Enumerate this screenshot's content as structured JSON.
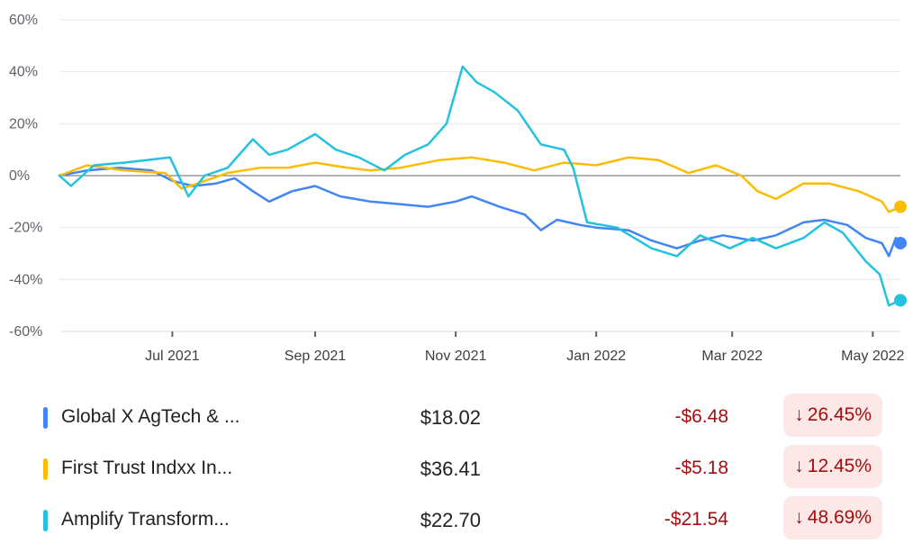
{
  "chart_data": {
    "type": "line",
    "y_ticks": [
      "60%",
      "40%",
      "20%",
      "0%",
      "-20%",
      "-40%",
      "-60%"
    ],
    "y_values": [
      60,
      40,
      20,
      0,
      -20,
      -40,
      -60
    ],
    "ylim": [
      -60,
      60
    ],
    "x_ticks": [
      "Jul 2021",
      "Sep 2021",
      "Nov 2021",
      "Jan 2022",
      "Mar 2022",
      "May 2022"
    ],
    "x_tick_dates": [
      "2021-07-01",
      "2021-09-01",
      "2021-11-01",
      "2022-01-01",
      "2022-03-01",
      "2022-05-01"
    ],
    "x_range": [
      "2021-05-13",
      "2022-05-13"
    ],
    "grid": true,
    "series": [
      {
        "name": "Global X AgTech & ...",
        "color": "#4285f4",
        "points": [
          [
            "2021-05-13",
            0
          ],
          [
            "2021-05-25",
            2
          ],
          [
            "2021-06-08",
            3
          ],
          [
            "2021-06-22",
            2
          ],
          [
            "2021-07-01",
            -2
          ],
          [
            "2021-07-10",
            -4
          ],
          [
            "2021-07-20",
            -3
          ],
          [
            "2021-07-28",
            -1
          ],
          [
            "2021-08-05",
            -6
          ],
          [
            "2021-08-12",
            -10
          ],
          [
            "2021-08-22",
            -6
          ],
          [
            "2021-09-01",
            -4
          ],
          [
            "2021-09-12",
            -8
          ],
          [
            "2021-09-25",
            -10
          ],
          [
            "2021-10-08",
            -11
          ],
          [
            "2021-10-20",
            -12
          ],
          [
            "2021-11-01",
            -10
          ],
          [
            "2021-11-08",
            -8
          ],
          [
            "2021-11-20",
            -12
          ],
          [
            "2021-12-01",
            -15
          ],
          [
            "2021-12-08",
            -21
          ],
          [
            "2021-12-15",
            -17
          ],
          [
            "2021-12-25",
            -19
          ],
          [
            "2022-01-01",
            -20
          ],
          [
            "2022-01-15",
            -21
          ],
          [
            "2022-01-25",
            -25
          ],
          [
            "2022-02-05",
            -28
          ],
          [
            "2022-02-15",
            -25
          ],
          [
            "2022-02-25",
            -23
          ],
          [
            "2022-03-10",
            -25
          ],
          [
            "2022-03-20",
            -23
          ],
          [
            "2022-04-01",
            -18
          ],
          [
            "2022-04-10",
            -17
          ],
          [
            "2022-04-20",
            -19
          ],
          [
            "2022-04-28",
            -24
          ],
          [
            "2022-05-05",
            -26
          ],
          [
            "2022-05-08",
            -31
          ],
          [
            "2022-05-11",
            -24
          ],
          [
            "2022-05-13",
            -26
          ]
        ]
      },
      {
        "name": "First Trust Indxx In...",
        "color": "#fbbc04",
        "points": [
          [
            "2021-05-13",
            0
          ],
          [
            "2021-05-25",
            4
          ],
          [
            "2021-06-10",
            2
          ],
          [
            "2021-06-28",
            1
          ],
          [
            "2021-07-05",
            -5
          ],
          [
            "2021-07-12",
            -3
          ],
          [
            "2021-07-25",
            1
          ],
          [
            "2021-08-08",
            3
          ],
          [
            "2021-08-20",
            3
          ],
          [
            "2021-09-01",
            5
          ],
          [
            "2021-09-15",
            3
          ],
          [
            "2021-09-25",
            2
          ],
          [
            "2021-10-08",
            3
          ],
          [
            "2021-10-25",
            6
          ],
          [
            "2021-11-08",
            7
          ],
          [
            "2021-11-22",
            5
          ],
          [
            "2021-12-05",
            2
          ],
          [
            "2021-12-18",
            5
          ],
          [
            "2022-01-01",
            4
          ],
          [
            "2022-01-15",
            7
          ],
          [
            "2022-01-28",
            6
          ],
          [
            "2022-02-10",
            1
          ],
          [
            "2022-02-22",
            4
          ],
          [
            "2022-03-05",
            0
          ],
          [
            "2022-03-12",
            -6
          ],
          [
            "2022-03-20",
            -9
          ],
          [
            "2022-04-01",
            -3
          ],
          [
            "2022-04-12",
            -3
          ],
          [
            "2022-04-25",
            -6
          ],
          [
            "2022-05-05",
            -10
          ],
          [
            "2022-05-08",
            -14
          ],
          [
            "2022-05-13",
            -12
          ]
        ]
      },
      {
        "name": "Amplify Transform...",
        "color": "#24c1e0",
        "points": [
          [
            "2021-05-13",
            0
          ],
          [
            "2021-05-18",
            -4
          ],
          [
            "2021-05-28",
            4
          ],
          [
            "2021-06-10",
            5
          ],
          [
            "2021-06-20",
            6
          ],
          [
            "2021-06-30",
            7
          ],
          [
            "2021-07-08",
            -8
          ],
          [
            "2021-07-15",
            0
          ],
          [
            "2021-07-25",
            3
          ],
          [
            "2021-08-05",
            14
          ],
          [
            "2021-08-12",
            8
          ],
          [
            "2021-08-20",
            10
          ],
          [
            "2021-09-01",
            16
          ],
          [
            "2021-09-10",
            10
          ],
          [
            "2021-09-20",
            7
          ],
          [
            "2021-10-01",
            2
          ],
          [
            "2021-10-10",
            8
          ],
          [
            "2021-10-20",
            12
          ],
          [
            "2021-10-28",
            20
          ],
          [
            "2021-11-04",
            42
          ],
          [
            "2021-11-10",
            36
          ],
          [
            "2021-11-18",
            32
          ],
          [
            "2021-11-28",
            25
          ],
          [
            "2021-12-08",
            12
          ],
          [
            "2021-12-18",
            10
          ],
          [
            "2021-12-22",
            3
          ],
          [
            "2021-12-28",
            -18
          ],
          [
            "2022-01-10",
            -20
          ],
          [
            "2022-01-25",
            -28
          ],
          [
            "2022-02-05",
            -31
          ],
          [
            "2022-02-15",
            -23
          ],
          [
            "2022-02-28",
            -28
          ],
          [
            "2022-03-10",
            -24
          ],
          [
            "2022-03-20",
            -28
          ],
          [
            "2022-04-01",
            -24
          ],
          [
            "2022-04-10",
            -18
          ],
          [
            "2022-04-18",
            -22
          ],
          [
            "2022-04-28",
            -33
          ],
          [
            "2022-05-04",
            -38
          ],
          [
            "2022-05-08",
            -50
          ],
          [
            "2022-05-13",
            -48
          ]
        ]
      }
    ]
  },
  "legend": [
    {
      "name": "Global X AgTech & ...",
      "color": "#4285f4",
      "price": "$18.02",
      "change": "-$6.48",
      "arrow": "↓",
      "pct": "26.45%"
    },
    {
      "name": "First Trust Indxx In...",
      "color": "#fbbc04",
      "price": "$36.41",
      "change": "-$5.18",
      "arrow": "↓",
      "pct": "12.45%"
    },
    {
      "name": "Amplify Transform...",
      "color": "#24c1e0",
      "price": "$22.70",
      "change": "-$21.54",
      "arrow": "↓",
      "pct": "48.69%"
    }
  ]
}
